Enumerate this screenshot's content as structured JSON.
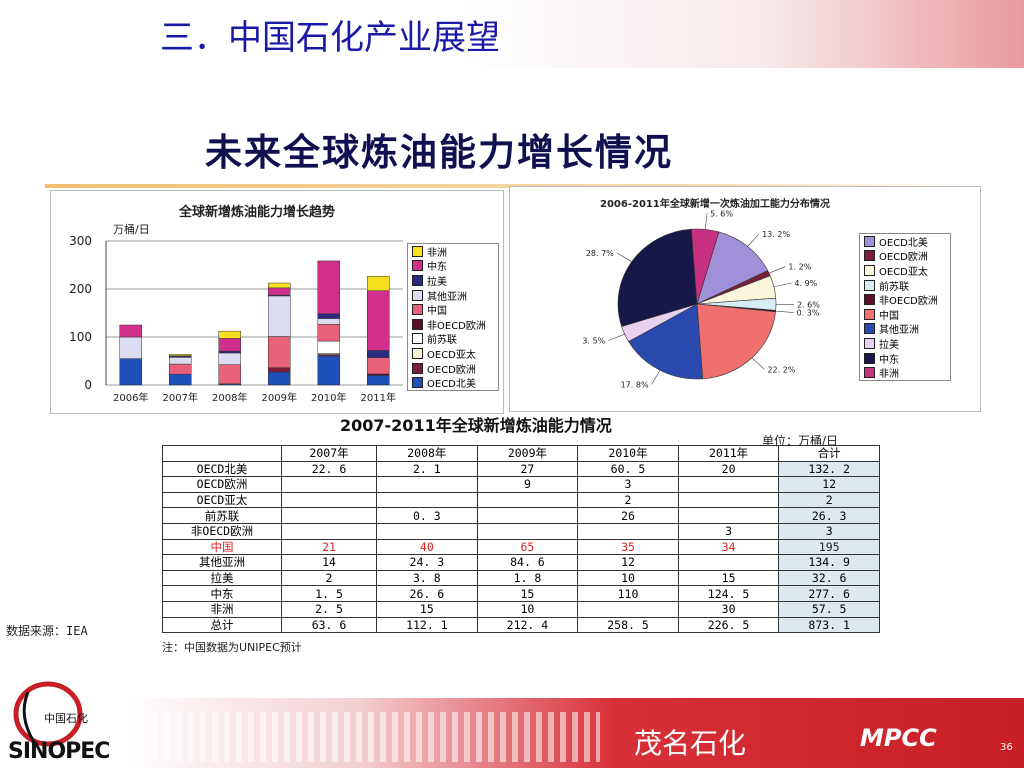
{
  "slide_title": "三．中国石化产业展望",
  "main_title": "未来全球炼油能力增长情况",
  "charts": [
    {
      "title": "全球新增炼油能力增长趋势",
      "ylabel": "万桶/日",
      "yticks": [
        "300",
        "200",
        "100",
        "0"
      ]
    },
    {
      "title": "2006-2011年全球新增一次炼油加工能力分布情况"
    }
  ],
  "chart_data": [
    {
      "type": "bar",
      "stacked": true,
      "title": "全球新增炼油能力增长趋势",
      "ylabel": "万桶/日",
      "ylim": [
        0,
        300
      ],
      "categories": [
        "2006年",
        "2007年",
        "2008年",
        "2009年",
        "2010年",
        "2011年"
      ],
      "series": [
        {
          "name": "OECD北美",
          "color": "#1f4fb8",
          "values": [
            55,
            22.6,
            2.1,
            27,
            60.5,
            20
          ]
        },
        {
          "name": "OECD欧洲",
          "color": "#7a1f3a",
          "values": [
            0,
            0,
            0,
            9,
            3,
            0
          ]
        },
        {
          "name": "OECD亚太",
          "color": "#f4f0d0",
          "values": [
            0,
            0,
            0,
            0,
            2,
            0
          ]
        },
        {
          "name": "前苏联",
          "color": "#ffffff",
          "values": [
            0,
            0,
            0.3,
            0,
            26,
            0
          ]
        },
        {
          "name": "非OECD欧洲",
          "color": "#5a1028",
          "values": [
            0,
            0,
            0,
            0,
            0,
            3
          ]
        },
        {
          "name": "中国",
          "color": "#e8607a",
          "values": [
            0,
            21,
            40,
            65,
            35,
            34
          ]
        },
        {
          "name": "其他亚洲",
          "color": "#dcdcf0",
          "values": [
            45,
            14,
            24.3,
            84.6,
            12,
            0
          ]
        },
        {
          "name": "拉美",
          "color": "#2a2a80",
          "values": [
            0,
            2,
            3.8,
            1.8,
            10,
            15
          ]
        },
        {
          "name": "中东",
          "color": "#d0308c",
          "values": [
            25,
            1.5,
            26.6,
            15,
            110,
            124.5
          ]
        },
        {
          "name": "非洲",
          "color": "#f7e020",
          "values": [
            0,
            2.5,
            15,
            10,
            0,
            30
          ]
        }
      ]
    },
    {
      "type": "pie",
      "title": "2006-2011年全球新增一次炼油加工能力分布情况",
      "slices": [
        {
          "name": "OECD北美",
          "value": 13.2,
          "label": "13. 2%",
          "color": "#a090d8"
        },
        {
          "name": "OECD欧洲",
          "value": 1.2,
          "label": "1. 2%",
          "color": "#7a1f3a"
        },
        {
          "name": "OECD亚太",
          "value": 4.9,
          "label": "4. 9%",
          "color": "#fbf7dc"
        },
        {
          "name": "前苏联",
          "value": 2.6,
          "label": "2. 6%",
          "color": "#d8ecf4"
        },
        {
          "name": "非OECD欧洲",
          "value": 0.3,
          "label": "0. 3%",
          "color": "#5a1028"
        },
        {
          "name": "中国",
          "value": 22.2,
          "label": "22. 2%",
          "color": "#f07070"
        },
        {
          "name": "其他亚洲",
          "value": 17.8,
          "label": "17. 8%",
          "color": "#2a4ab0"
        },
        {
          "name": "拉美",
          "value": 3.5,
          "label": "3. 5%",
          "color": "#e8d0f0"
        },
        {
          "name": "中东",
          "value": 28.7,
          "label": "28. 7%",
          "color": "#181848"
        },
        {
          "name": "非洲",
          "value": 5.6,
          "label": "5. 6%",
          "color": "#c83080"
        }
      ]
    },
    {
      "type": "table",
      "title": "2007-2011年全球新增炼油能力情况",
      "unit": "单位：万桶/日",
      "columns": [
        "",
        "2007年",
        "2008年",
        "2009年",
        "2010年",
        "2011年",
        "合计"
      ],
      "rows": [
        {
          "name": "OECD北美",
          "cells": [
            "22. 6",
            "2. 1",
            "27",
            "60. 5",
            "20",
            "132. 2"
          ]
        },
        {
          "name": "OECD欧洲",
          "cells": [
            "",
            "",
            "9",
            "3",
            "",
            "12"
          ]
        },
        {
          "name": "OECD亚太",
          "cells": [
            "",
            "",
            "",
            "2",
            "",
            "2"
          ]
        },
        {
          "name": "前苏联",
          "cells": [
            "",
            "0. 3",
            "",
            "26",
            "",
            "26. 3"
          ]
        },
        {
          "name": "非OECD欧洲",
          "cells": [
            "",
            "",
            "",
            "",
            "3",
            "3"
          ]
        },
        {
          "name": "中国",
          "cells": [
            "21",
            "40",
            "65",
            "35",
            "34",
            "195"
          ],
          "highlight": true
        },
        {
          "name": "其他亚洲",
          "cells": [
            "14",
            "24. 3",
            "84. 6",
            "12",
            "",
            "134. 9"
          ]
        },
        {
          "name": "拉美",
          "cells": [
            "2",
            "3. 8",
            "1. 8",
            "10",
            "15",
            "32. 6"
          ]
        },
        {
          "name": "中东",
          "cells": [
            "1. 5",
            "26. 6",
            "15",
            "110",
            "124. 5",
            "277. 6"
          ]
        },
        {
          "name": "非洲",
          "cells": [
            "2. 5",
            "15",
            "10",
            "",
            "30",
            "57. 5"
          ]
        },
        {
          "name": "总计",
          "cells": [
            "63. 6",
            "112. 1",
            "212. 4",
            "258. 5",
            "226. 5",
            "873. 1"
          ]
        }
      ],
      "note": "注：中国数据为UNIPEC预计"
    }
  ],
  "source": "数据来源：IEA",
  "footer": {
    "company": "茂名石化",
    "brand": "MPCC",
    "page": "36",
    "logo_text": "SINOPEC",
    "logo_script": "中国石化"
  }
}
